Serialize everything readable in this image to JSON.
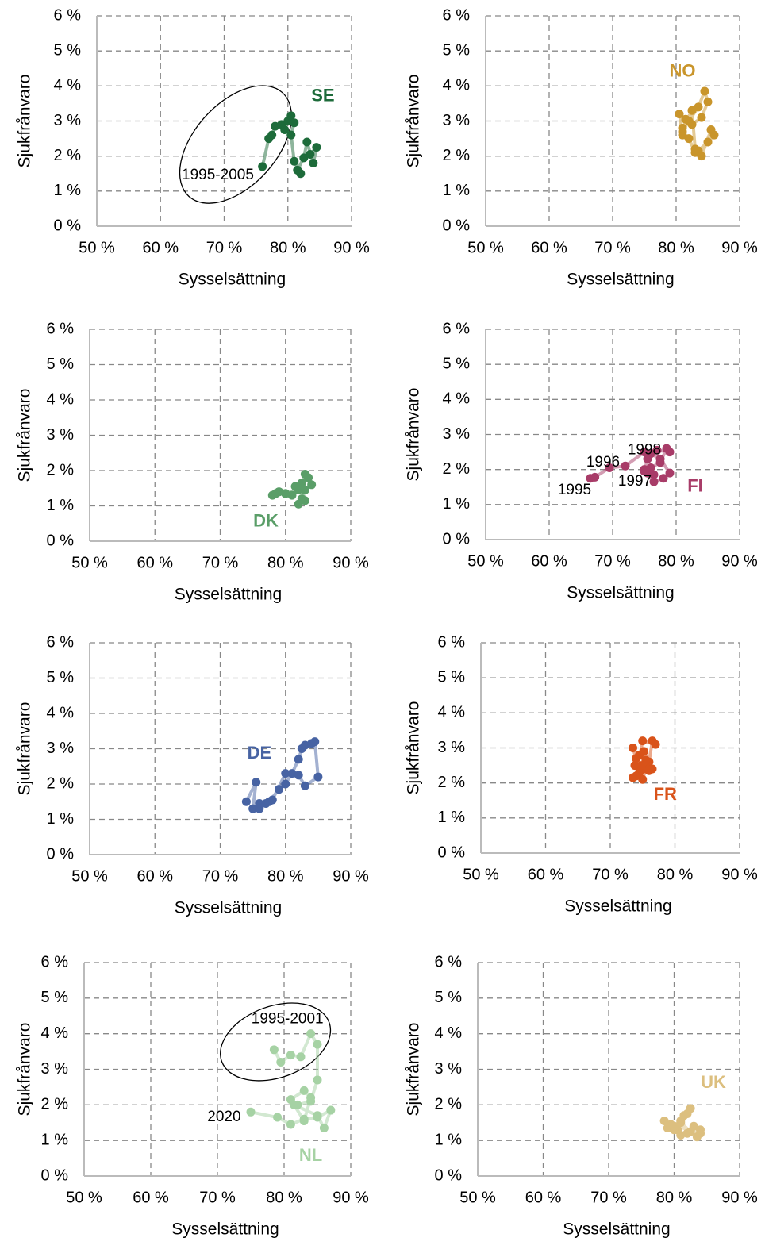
{
  "chart_data": [
    {
      "type": "line",
      "x_label": "Sysselsättning",
      "y_label": "Sjukfrånvaro",
      "x": [
        76,
        77,
        77.5,
        78,
        79,
        79.5,
        80,
        80.5,
        81,
        80.5,
        81,
        82,
        81.5,
        82.5,
        83,
        84,
        84.5,
        83.5
      ],
      "series": [
        {
          "name": "SE",
          "color": "#1d6b3a",
          "values": [
            1.7,
            2.5,
            2.6,
            2.85,
            2.9,
            2.75,
            3.0,
            3.15,
            2.95,
            2.6,
            1.85,
            1.5,
            1.6,
            1.95,
            2.4,
            1.8,
            2.25,
            2.05
          ]
        }
      ],
      "annotations": [
        "1995-2005"
      ],
      "xlim": [
        50,
        90
      ],
      "ylim": [
        0,
        6
      ],
      "xticks": [
        {
          "value": 50,
          "label": "50 %"
        },
        {
          "value": 60,
          "label": "60 %"
        },
        {
          "value": 70,
          "label": "70 %"
        },
        {
          "value": 80,
          "label": "80 %"
        },
        {
          "value": 90,
          "label": "90 %"
        }
      ],
      "yticks": [
        {
          "value": 0,
          "label": "0 %"
        },
        {
          "value": 1,
          "label": "1 %"
        },
        {
          "value": 2,
          "label": "2 %"
        },
        {
          "value": 3,
          "label": "3 %"
        },
        {
          "value": 4,
          "label": "4 %"
        },
        {
          "value": 5,
          "label": "5 %"
        },
        {
          "value": 6,
          "label": "6 %"
        }
      ],
      "grid": true
    },
    {
      "type": "line",
      "x_label": "Sysselsättning",
      "y_label": "Sjukfrånvaro",
      "x": [
        81,
        82,
        83.5,
        84.5,
        85,
        84,
        82.5,
        81.5,
        80.5,
        81,
        82,
        83,
        83.5,
        85,
        86,
        85.5,
        84,
        83,
        82.5,
        81
      ],
      "series": [
        {
          "name": "NO",
          "color": "#c9952b",
          "values": [
            2.7,
            3.0,
            3.4,
            3.85,
            3.55,
            3.1,
            2.9,
            3.05,
            3.2,
            2.6,
            2.5,
            2.1,
            2.15,
            2.4,
            2.6,
            2.75,
            2.0,
            2.2,
            3.3,
            2.8
          ]
        }
      ],
      "annotations": [],
      "xlim": [
        50,
        90
      ],
      "ylim": [
        0,
        6
      ],
      "xticks": [
        {
          "value": 50,
          "label": "50 %"
        },
        {
          "value": 60,
          "label": "60 %"
        },
        {
          "value": 70,
          "label": "70 %"
        },
        {
          "value": 80,
          "label": "80 %"
        },
        {
          "value": 90,
          "label": "90 %"
        }
      ],
      "yticks": [
        {
          "value": 0,
          "label": "0 %"
        },
        {
          "value": 1,
          "label": "1 %"
        },
        {
          "value": 2,
          "label": "2 %"
        },
        {
          "value": 3,
          "label": "3 %"
        },
        {
          "value": 4,
          "label": "4 %"
        },
        {
          "value": 5,
          "label": "5 %"
        },
        {
          "value": 6,
          "label": "6 %"
        }
      ],
      "grid": true
    },
    {
      "type": "line",
      "x_label": "Sysselsättning",
      "y_label": "Sjukfrånvaro",
      "x": [
        78,
        78.5,
        79,
        80,
        81,
        82,
        81.5,
        82.5,
        83,
        83.5,
        84,
        83,
        82.5,
        82,
        83,
        82.5,
        80,
        79
      ],
      "series": [
        {
          "name": "DK",
          "color": "#5a9e68",
          "values": [
            1.3,
            1.35,
            1.4,
            1.35,
            1.3,
            1.45,
            1.55,
            1.65,
            1.9,
            1.8,
            1.6,
            1.45,
            1.2,
            1.05,
            1.15,
            1.5,
            1.35,
            1.4
          ]
        }
      ],
      "annotations": [],
      "xlim": [
        50,
        90
      ],
      "ylim": [
        0,
        6
      ],
      "xticks": [
        {
          "value": 50,
          "label": "50 %"
        },
        {
          "value": 60,
          "label": "60 %"
        },
        {
          "value": 70,
          "label": "70 %"
        },
        {
          "value": 80,
          "label": "80 %"
        },
        {
          "value": 90,
          "label": "90 %"
        }
      ],
      "yticks": [
        {
          "value": 0,
          "label": "0 %"
        },
        {
          "value": 1,
          "label": "1 %"
        },
        {
          "value": 2,
          "label": "2 %"
        },
        {
          "value": 3,
          "label": "3 %"
        },
        {
          "value": 4,
          "label": "4 %"
        },
        {
          "value": 5,
          "label": "5 %"
        },
        {
          "value": 6,
          "label": "6 %"
        }
      ],
      "grid": true
    },
    {
      "type": "line",
      "x_label": "Sysselsättning",
      "y_label": "Sjukfrånvaro",
      "x": [
        66.5,
        67.2,
        69.5,
        72,
        75,
        77,
        79,
        78.5,
        77.5,
        76,
        75.5,
        76.5,
        78,
        79,
        77.5,
        76,
        75,
        76.5,
        75,
        75.5
      ],
      "series": [
        {
          "name": "FI",
          "color": "#a83c68",
          "values": [
            1.75,
            1.78,
            2.05,
            2.1,
            2.5,
            2.55,
            2.5,
            2.6,
            2.2,
            2.05,
            1.9,
            1.65,
            1.75,
            1.9,
            2.3,
            2.45,
            2.0,
            1.85,
            1.95,
            2.3
          ]
        }
      ],
      "annotations": [
        "1995",
        "1996",
        "1997",
        "1998"
      ],
      "xlim": [
        50,
        90
      ],
      "ylim": [
        0,
        6
      ],
      "xticks": [
        {
          "value": 50,
          "label": "50 %"
        },
        {
          "value": 60,
          "label": "60 %"
        },
        {
          "value": 70,
          "label": "70 %"
        },
        {
          "value": 80,
          "label": "80 %"
        },
        {
          "value": 90,
          "label": "90 %"
        }
      ],
      "yticks": [
        {
          "value": 0,
          "label": "0 %"
        },
        {
          "value": 1,
          "label": "1 %"
        },
        {
          "value": 2,
          "label": "2 %"
        },
        {
          "value": 3,
          "label": "3 %"
        },
        {
          "value": 4,
          "label": "4 %"
        },
        {
          "value": 5,
          "label": "5 %"
        },
        {
          "value": 6,
          "label": "6 %"
        }
      ],
      "grid": true
    },
    {
      "type": "line",
      "x_label": "Sysselsättning",
      "y_label": "Sjukfrånvaro",
      "x": [
        74,
        75.5,
        75,
        76,
        77,
        77.5,
        79,
        80,
        81,
        82,
        82.5,
        83,
        84,
        84.5,
        85,
        83,
        82,
        80,
        78,
        76
      ],
      "series": [
        {
          "name": "DE",
          "color": "#4763a3",
          "values": [
            1.5,
            2.05,
            1.3,
            1.3,
            1.45,
            1.5,
            1.85,
            2.0,
            2.3,
            2.7,
            3.0,
            3.1,
            3.15,
            3.2,
            2.2,
            1.95,
            2.25,
            2.3,
            1.55,
            1.45
          ]
        }
      ],
      "annotations": [],
      "xlim": [
        50,
        90
      ],
      "ylim": [
        0,
        6
      ],
      "xticks": [
        {
          "value": 50,
          "label": "50 %"
        },
        {
          "value": 60,
          "label": "60 %"
        },
        {
          "value": 70,
          "label": "70 %"
        },
        {
          "value": 80,
          "label": "80 %"
        },
        {
          "value": 90,
          "label": "90 %"
        }
      ],
      "yticks": [
        {
          "value": 0,
          "label": "0 %"
        },
        {
          "value": 1,
          "label": "1 %"
        },
        {
          "value": 2,
          "label": "2 %"
        },
        {
          "value": 3,
          "label": "3 %"
        },
        {
          "value": 4,
          "label": "4 %"
        },
        {
          "value": 5,
          "label": "5 %"
        },
        {
          "value": 6,
          "label": "6 %"
        }
      ],
      "grid": true
    },
    {
      "type": "line",
      "x_label": "Sysselsättning",
      "y_label": "Sjukfrånvaro",
      "x": [
        73.5,
        74,
        73.8,
        74.5,
        75,
        75.5,
        76,
        76.5,
        77,
        75,
        74,
        74.5,
        75.5,
        76,
        74.8,
        73.5,
        76.5,
        75.2
      ],
      "series": [
        {
          "name": "FR",
          "color": "#d9531a",
          "values": [
            3.0,
            2.7,
            2.5,
            2.3,
            2.1,
            2.4,
            2.6,
            3.2,
            3.1,
            3.2,
            2.2,
            2.8,
            2.65,
            2.35,
            2.5,
            2.15,
            2.4,
            2.9
          ]
        }
      ],
      "annotations": [],
      "xlim": [
        50,
        90
      ],
      "ylim": [
        0,
        6
      ],
      "xticks": [
        {
          "value": 50,
          "label": "50 %"
        },
        {
          "value": 60,
          "label": "60 %"
        },
        {
          "value": 70,
          "label": "70 %"
        },
        {
          "value": 80,
          "label": "80 %"
        },
        {
          "value": 90,
          "label": "90 %"
        }
      ],
      "yticks": [
        {
          "value": 0,
          "label": "0 %"
        },
        {
          "value": 1,
          "label": "1 %"
        },
        {
          "value": 2,
          "label": "2 %"
        },
        {
          "value": 3,
          "label": "3 %"
        },
        {
          "value": 4,
          "label": "4 %"
        },
        {
          "value": 5,
          "label": "5 %"
        },
        {
          "value": 6,
          "label": "6 %"
        }
      ],
      "grid": true
    },
    {
      "type": "line",
      "x_label": "Sysselsättning",
      "y_label": "Sjukfrånvaro",
      "x": [
        78.5,
        79.5,
        81,
        82.5,
        84,
        85,
        85,
        84,
        82,
        81,
        83,
        84,
        83,
        81.5,
        85,
        86,
        87,
        85,
        83,
        81,
        79,
        75
      ],
      "series": [
        {
          "name": "NL",
          "color": "#a6d2a4",
          "values": [
            3.55,
            3.2,
            3.4,
            3.35,
            4.0,
            3.7,
            2.7,
            2.1,
            2.0,
            2.15,
            2.4,
            2.2,
            1.55,
            2.0,
            1.7,
            1.35,
            1.85,
            1.65,
            1.6,
            1.45,
            1.65,
            1.8
          ]
        }
      ],
      "annotations": [
        "1995-2001",
        "2020"
      ],
      "xlim": [
        50,
        90
      ],
      "ylim": [
        0,
        6
      ],
      "xticks": [
        {
          "value": 50,
          "label": "50 %"
        },
        {
          "value": 60,
          "label": "60 %"
        },
        {
          "value": 70,
          "label": "70 %"
        },
        {
          "value": 80,
          "label": "80 %"
        },
        {
          "value": 90,
          "label": "90 %"
        }
      ],
      "yticks": [
        {
          "value": 0,
          "label": "0 %"
        },
        {
          "value": 1,
          "label": "1 %"
        },
        {
          "value": 2,
          "label": "2 %"
        },
        {
          "value": 3,
          "label": "3 %"
        },
        {
          "value": 4,
          "label": "4 %"
        },
        {
          "value": 5,
          "label": "5 %"
        },
        {
          "value": 6,
          "label": "6 %"
        }
      ],
      "grid": true
    },
    {
      "type": "line",
      "x_label": "Sysselsättning",
      "y_label": "Sjukfrånvaro",
      "x": [
        78.5,
        79,
        80,
        81,
        82,
        82.5,
        81.5,
        80.5,
        81,
        82,
        83,
        84,
        83.5,
        82.5,
        81,
        80,
        79.5,
        84
      ],
      "series": [
        {
          "name": "UK",
          "color": "#dcbf7f",
          "values": [
            1.55,
            1.35,
            1.4,
            1.55,
            1.75,
            1.9,
            1.7,
            1.3,
            1.15,
            1.2,
            1.4,
            1.3,
            1.1,
            1.25,
            1.5,
            1.3,
            1.45,
            1.2
          ]
        }
      ],
      "annotations": [],
      "xlim": [
        50,
        90
      ],
      "ylim": [
        0,
        6
      ],
      "xticks": [
        {
          "value": 50,
          "label": "50 %"
        },
        {
          "value": 60,
          "label": "60 %"
        },
        {
          "value": 70,
          "label": "70 %"
        },
        {
          "value": 80,
          "label": "80 %"
        },
        {
          "value": 90,
          "label": "90 %"
        }
      ],
      "yticks": [
        {
          "value": 0,
          "label": "0 %"
        },
        {
          "value": 1,
          "label": "1 %"
        },
        {
          "value": 2,
          "label": "2 %"
        },
        {
          "value": 3,
          "label": "3 %"
        },
        {
          "value": 4,
          "label": "4 %"
        },
        {
          "value": 5,
          "label": "5 %"
        },
        {
          "value": 6,
          "label": "6 %"
        }
      ],
      "grid": true
    }
  ]
}
